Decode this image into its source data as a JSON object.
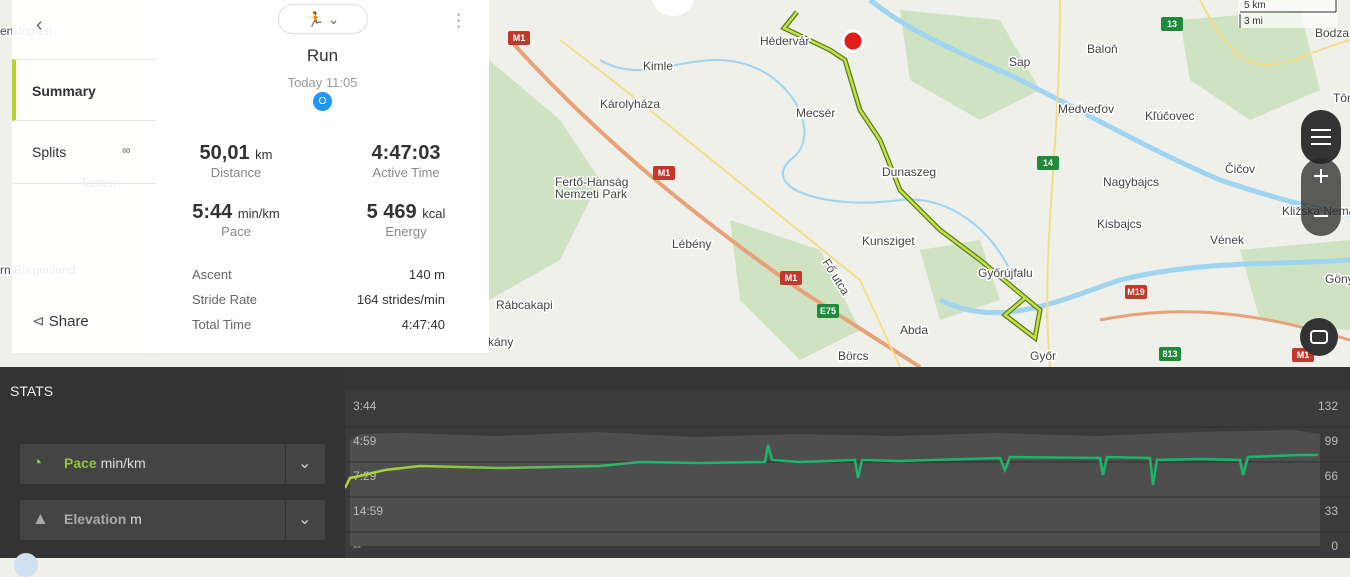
{
  "sidebar": {
    "items": [
      "Summary",
      "Splits"
    ],
    "share": "Share"
  },
  "workout": {
    "title": "Run",
    "time": "Today 11:05",
    "badge": "O",
    "primary": [
      {
        "value": "50,01",
        "unit": "km",
        "label": "Distance"
      },
      {
        "value": "4:47:03",
        "label": "Active Time"
      },
      {
        "value": "5:44",
        "unit": "min/km",
        "label": "Pace"
      },
      {
        "value": "5 469",
        "unit": "kcal",
        "label": "Energy"
      }
    ],
    "details": [
      {
        "label": "Ascent",
        "value": "140 m"
      },
      {
        "label": "Stride Rate",
        "value": "164 strides/min"
      },
      {
        "label": "Total Time",
        "value": "4:47:40"
      }
    ]
  },
  "map": {
    "labels": [
      "enkirchen",
      "Tadten",
      "rn Burgenland",
      "Hédervár",
      "Kimle",
      "Károlyháza",
      "Mecsér",
      "Dunaszeg",
      "Fertő-Hanság",
      "Nemzeti Park",
      "Lébény",
      "Kunsziget",
      "Fő utca",
      "Győrújfalu",
      "Rábcakapi",
      "Abda",
      "Börcs",
      "Győr",
      "kány",
      "Baloň",
      "Sap",
      "Medveďov",
      "Kľúčovec",
      "Čičov",
      "Nagybajcs",
      "Kisbajcs",
      "Vének",
      "Bodza",
      "Tôn",
      "Kližska Nemá",
      "Gönyű"
    ],
    "shields": [
      "M1",
      "M1",
      "M1",
      "13",
      "14",
      "M19",
      "813",
      "E75",
      "M1"
    ],
    "scale": [
      "5 km",
      "3 mi"
    ]
  },
  "stats": {
    "title": "STATS",
    "selectors": [
      {
        "name": "Pace",
        "unit": "min/km"
      },
      {
        "name": "Elevation",
        "unit": "m"
      }
    ],
    "left_axis": [
      "3:44",
      "4:59",
      "7:29",
      "14:59",
      "--"
    ],
    "right_axis": [
      "132",
      "99",
      "66",
      "33",
      "0"
    ]
  }
}
